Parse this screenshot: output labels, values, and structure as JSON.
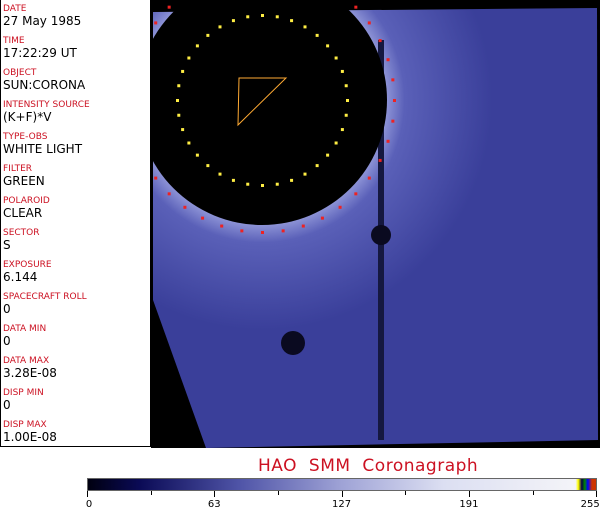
{
  "fields": [
    {
      "label": "DATE",
      "value": "27 May 1985"
    },
    {
      "label": "TIME",
      "value": "17:22:29 UT"
    },
    {
      "label": "OBJECT",
      "value": "SUN:CORONA"
    },
    {
      "label": "INTENSITY SOURCE",
      "value": "(K+F)*V"
    },
    {
      "label": "TYPE-OBS",
      "value": "WHITE LIGHT"
    },
    {
      "label": "FILTER",
      "value": "GREEN"
    },
    {
      "label": "POLAROID",
      "value": "CLEAR"
    },
    {
      "label": "SECTOR",
      "value": "S"
    },
    {
      "label": "EXPOSURE",
      "value": "6.144"
    },
    {
      "label": "SPACECRAFT ROLL",
      "value": "0"
    },
    {
      "label": "DATA MIN",
      "value": "0"
    },
    {
      "label": "DATA MAX",
      "value": "3.28E-08"
    },
    {
      "label": "DISP MIN",
      "value": "0"
    },
    {
      "label": "DISP MAX",
      "value": "1.00E-08"
    }
  ],
  "title": "HAO  SMM Coronagraph",
  "colorbar": {
    "ticks": [
      "0",
      "63",
      "127",
      "191",
      "255"
    ],
    "min": 0,
    "max": 255
  },
  "colors": {
    "label": "#cc1122",
    "image_blue": "#3a3f9a",
    "yellow_dots": "#ffee44",
    "red_dots": "#ee2222"
  }
}
